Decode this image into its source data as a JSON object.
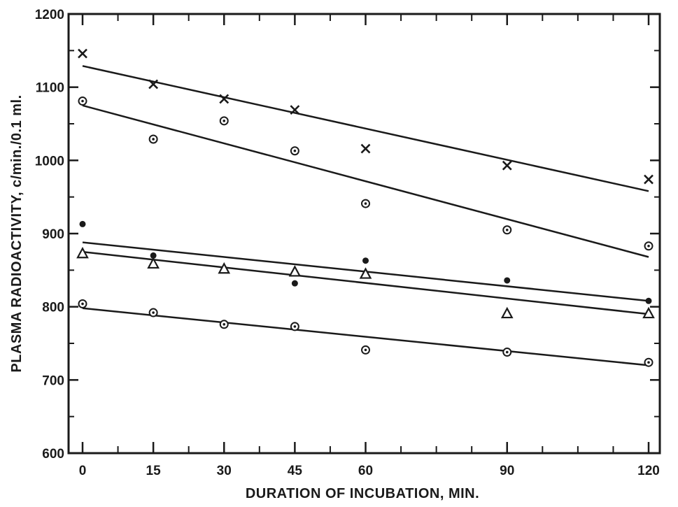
{
  "chart_data": {
    "type": "scatter",
    "title": "",
    "xlabel": "DURATION OF INCUBATION, MIN.",
    "ylabel": "PLASMA RADIOACTIVITY,  c/min./0.1 ml.",
    "xlim": [
      0,
      120
    ],
    "ylim": [
      600,
      1200
    ],
    "x_ticks": [
      0,
      15,
      30,
      45,
      60,
      90,
      120
    ],
    "x_tick_labels": [
      "0",
      "15",
      "30",
      "45",
      "60",
      "90",
      "120"
    ],
    "y_ticks": [
      600,
      700,
      800,
      900,
      1000,
      1100,
      1200
    ],
    "y_tick_labels": [
      "600",
      "700",
      "800",
      "900",
      "1000",
      "1100",
      "1200"
    ],
    "grid": false,
    "legend": "none",
    "series": [
      {
        "marker": "x",
        "x": [
          0,
          15,
          30,
          45,
          60,
          90,
          120
        ],
        "y": [
          1146,
          1104,
          1084,
          1069,
          1016,
          993,
          974
        ],
        "fit": [
          [
            0,
            1129
          ],
          [
            120,
            958
          ]
        ]
      },
      {
        "marker": "circle-dot",
        "x": [
          0,
          15,
          30,
          45,
          60,
          90,
          120
        ],
        "y": [
          1081,
          1029,
          1054,
          1013,
          941,
          905,
          883
        ],
        "fit": [
          [
            0,
            1075
          ],
          [
            120,
            868
          ]
        ]
      },
      {
        "marker": "filled-dot",
        "x": [
          0,
          15,
          30,
          45,
          60,
          90,
          120
        ],
        "y": [
          913,
          870,
          852,
          832,
          863,
          836,
          808
        ],
        "fit": [
          [
            0,
            888
          ],
          [
            120,
            808
          ]
        ]
      },
      {
        "marker": "triangle",
        "x": [
          0,
          15,
          30,
          45,
          60,
          90,
          120
        ],
        "y": [
          873,
          859,
          852,
          848,
          845,
          791,
          791
        ],
        "fit": [
          [
            0,
            875
          ],
          [
            120,
            790
          ]
        ]
      },
      {
        "marker": "circle-dot",
        "x": [
          0,
          15,
          30,
          45,
          60,
          90,
          120
        ],
        "y": [
          804,
          792,
          776,
          773,
          741,
          738,
          724
        ],
        "fit": [
          [
            0,
            798
          ],
          [
            120,
            720
          ]
        ]
      }
    ]
  }
}
